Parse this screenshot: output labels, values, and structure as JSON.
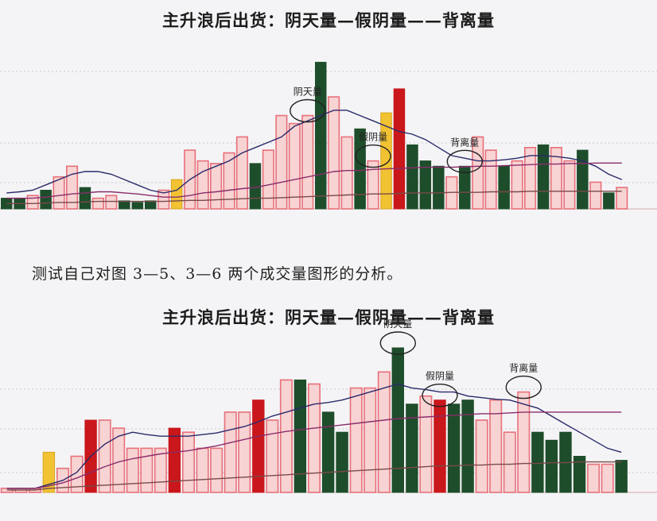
{
  "caption": "测试自己对图 3—5、3—6 两个成交量图形的分析。",
  "colors": {
    "red_outline": "#e8707a",
    "pink_fill": "#f7d3d3",
    "red_solid": "#c9171b",
    "green_solid": "#1e4d2b",
    "yellow": "#f1c232",
    "ma_dark": "#2a2a6a",
    "ma_purple": "#8a2d6b",
    "ma_brown": "#7a4a48",
    "ellipse": "#222222"
  },
  "chart_data": [
    {
      "type": "bar",
      "title": "主升浪后出货：阴天量—假阴量——背离量",
      "annotations": [
        {
          "text": "阴天量",
          "bar_index": 23
        },
        {
          "text": "假阴量",
          "bar_index": 28
        },
        {
          "text": "背离量",
          "bar_index": 35
        }
      ],
      "series": [
        {
          "values": [
            20,
            20,
            25,
            35,
            60,
            80,
            40,
            20,
            25,
            15,
            12,
            15,
            35,
            55,
            110,
            90,
            85,
            105,
            135,
            85,
            110,
            175,
            160,
            175,
            275,
            210,
            135,
            150,
            90,
            180,
            225,
            120,
            90,
            80,
            60,
            80,
            135,
            110,
            80,
            90,
            115,
            120,
            115,
            90,
            110,
            50,
            30,
            40
          ],
          "colors": [
            "dark",
            "dark",
            "pink",
            "dark",
            "pink",
            "pink",
            "dark",
            "pink",
            "pink",
            "dark",
            "dark",
            "dark",
            "pink",
            "yellow",
            "pink",
            "pink",
            "pink",
            "pink",
            "pink",
            "dark",
            "pink",
            "pink",
            "pink",
            "pink",
            "dark",
            "pink",
            "pink",
            "dark",
            "pink",
            "yellow",
            "red",
            "dark",
            "dark",
            "dark",
            "pink",
            "dark",
            "pink",
            "pink",
            "dark",
            "pink",
            "pink",
            "dark",
            "pink",
            "pink",
            "dark",
            "pink",
            "dark",
            "pink"
          ]
        }
      ],
      "moving_averages": [
        {
          "color": "dark",
          "values": [
            30,
            32,
            35,
            45,
            55,
            65,
            70,
            70,
            65,
            55,
            45,
            35,
            30,
            35,
            55,
            70,
            80,
            90,
            105,
            115,
            125,
            135,
            155,
            165,
            175,
            185,
            185,
            175,
            165,
            155,
            145,
            140,
            130,
            115,
            100,
            95,
            90,
            90,
            92,
            95,
            100,
            100,
            98,
            95,
            90,
            80,
            65,
            55
          ]
        },
        {
          "color": "purple",
          "values": [
            20,
            20,
            20,
            22,
            25,
            28,
            30,
            32,
            32,
            30,
            28,
            25,
            22,
            22,
            25,
            30,
            32,
            35,
            38,
            40,
            45,
            50,
            55,
            60,
            65,
            70,
            72,
            72,
            74,
            75,
            76,
            77,
            78,
            78,
            78,
            79,
            80,
            80,
            81,
            82,
            83,
            84,
            84,
            85,
            85,
            86,
            86,
            86
          ]
        },
        {
          "color": "brown",
          "values": [
            10,
            10,
            10,
            11,
            12,
            12,
            13,
            14,
            14,
            14,
            14,
            14,
            14,
            15,
            16,
            16,
            17,
            18,
            19,
            20,
            20,
            21,
            22,
            23,
            24,
            25,
            26,
            27,
            28,
            28,
            29,
            30,
            30,
            30,
            31,
            31,
            31,
            32,
            32,
            32,
            33,
            33,
            33,
            33,
            33,
            33,
            33,
            33
          ]
        }
      ]
    },
    {
      "type": "bar",
      "title": "主升浪后出货：阴天量—假阴量——背离量",
      "annotations": [
        {
          "text": "阴天量",
          "bar_index": 28
        },
        {
          "text": "假阴量",
          "bar_index": 31
        },
        {
          "text": "背离量",
          "bar_index": 37
        }
      ],
      "series": [
        {
          "values": [
            5,
            5,
            5,
            50,
            30,
            45,
            90,
            90,
            80,
            55,
            55,
            55,
            80,
            75,
            55,
            55,
            100,
            100,
            115,
            90,
            140,
            140,
            135,
            100,
            75,
            130,
            130,
            150,
            180,
            110,
            120,
            115,
            110,
            115,
            90,
            115,
            75,
            125,
            75,
            65,
            75,
            45,
            35,
            35,
            40
          ],
          "colors": [
            "pink",
            "pink",
            "pink",
            "yellow",
            "pink",
            "pink",
            "red",
            "pink",
            "pink",
            "pink",
            "pink",
            "pink",
            "red",
            "pink",
            "pink",
            "pink",
            "pink",
            "pink",
            "red",
            "pink",
            "pink",
            "dark",
            "pink",
            "dark",
            "dark",
            "pink",
            "pink",
            "pink",
            "dark",
            "dark",
            "pink",
            "red",
            "dark",
            "dark",
            "pink",
            "pink",
            "pink",
            "pink",
            "dark",
            "dark",
            "dark",
            "dark",
            "pink",
            "pink",
            "dark"
          ]
        }
      ],
      "moving_averages": [
        {
          "color": "dark",
          "values": [
            5,
            5,
            5,
            10,
            15,
            25,
            45,
            60,
            70,
            75,
            72,
            70,
            70,
            70,
            72,
            74,
            78,
            82,
            88,
            95,
            100,
            105,
            110,
            112,
            115,
            120,
            125,
            130,
            135,
            130,
            128,
            125,
            125,
            120,
            118,
            116,
            115,
            110,
            105,
            95,
            85,
            75,
            65,
            55,
            50
          ]
        },
        {
          "color": "purple",
          "values": [
            5,
            5,
            5,
            8,
            12,
            18,
            25,
            32,
            38,
            42,
            45,
            48,
            50,
            52,
            55,
            58,
            62,
            66,
            70,
            73,
            76,
            78,
            80,
            82,
            84,
            86,
            88,
            90,
            92,
            93,
            94,
            95,
            96,
            97,
            98,
            98,
            99,
            100,
            100,
            100,
            100,
            100,
            100,
            100,
            100
          ]
        },
        {
          "color": "brown",
          "values": [
            3,
            3,
            3,
            5,
            6,
            7,
            8,
            9,
            10,
            11,
            12,
            13,
            14,
            15,
            16,
            17,
            18,
            19,
            20,
            21,
            22,
            23,
            24,
            25,
            26,
            27,
            28,
            29,
            30,
            31,
            32,
            33,
            33,
            34,
            34,
            35,
            35,
            36,
            36,
            37,
            37,
            38,
            38,
            38,
            38
          ]
        }
      ]
    }
  ]
}
